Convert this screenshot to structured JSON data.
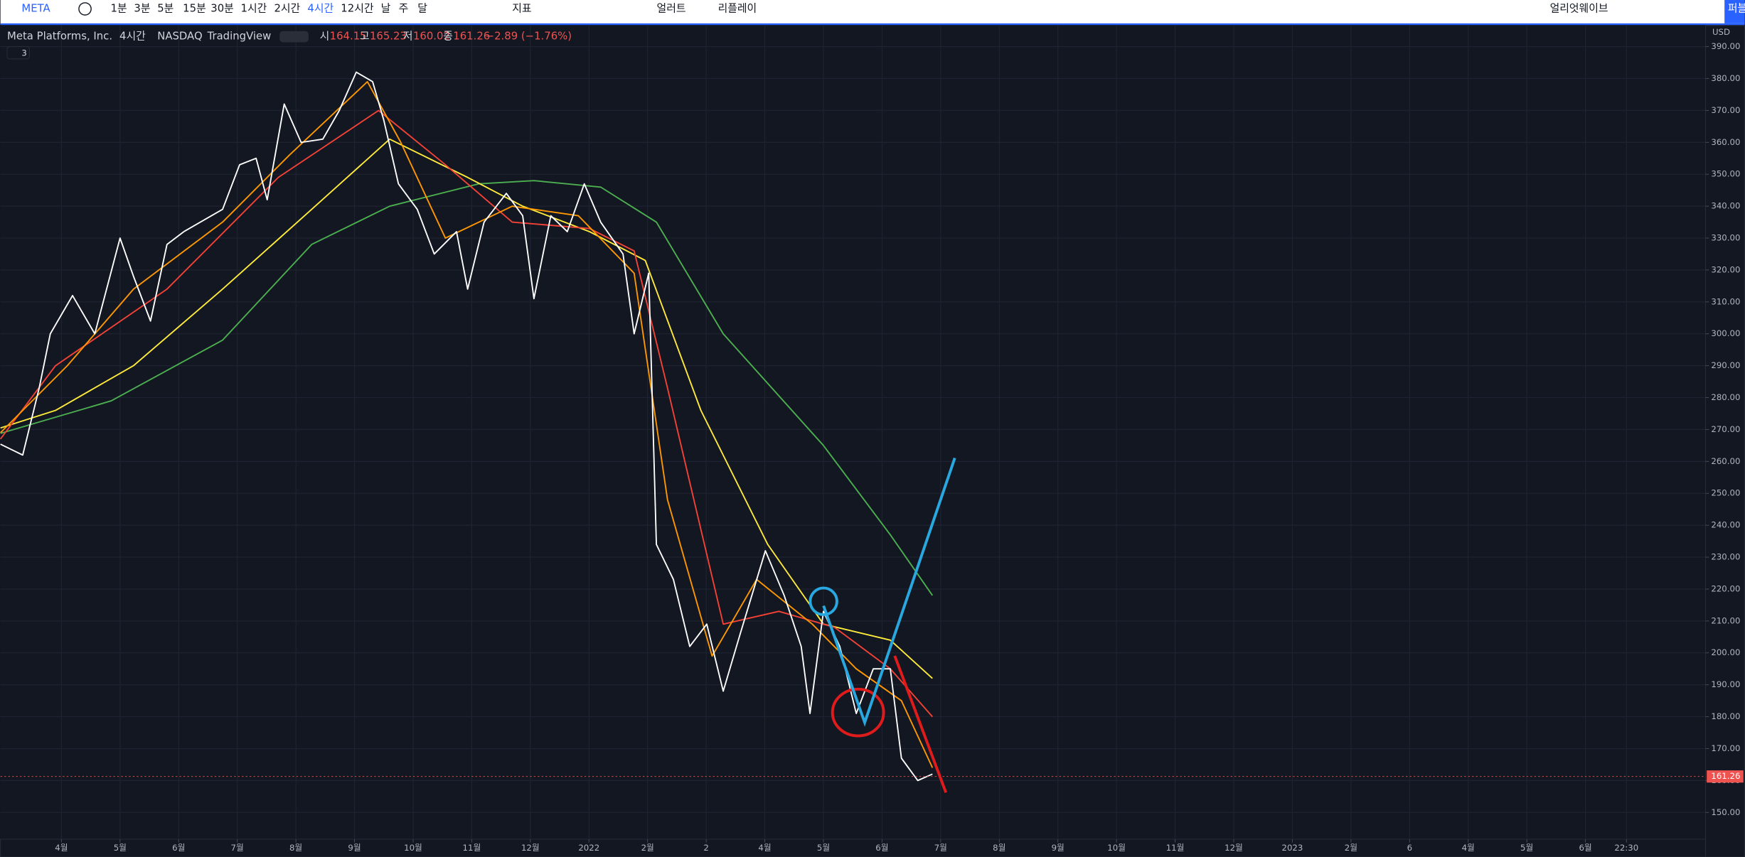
{
  "toolbar": {
    "symbol": "META",
    "intervals": [
      "1분",
      "3분",
      "5분",
      "15분",
      "30분",
      "1시간",
      "2시간",
      "4시간",
      "12시간",
      "날",
      "주",
      "달"
    ],
    "indicators": "지표",
    "alert": "얼러트",
    "replay": "리플레이",
    "layout": "얼리엇웨이브",
    "publish": "퍼블"
  },
  "legend": {
    "name": "Meta Platforms, Inc.",
    "interval": "4시간",
    "exchange": "NASDAQ",
    "source": "TradingView",
    "ohlc": [
      {
        "label": "시",
        "value": "164.15"
      },
      {
        "label": "고",
        "value": "165.23"
      },
      {
        "label": "저",
        "value": "160.02"
      },
      {
        "label": "종",
        "value": "161.26"
      }
    ],
    "change": "−2.89 (−1.76%)",
    "indicator_count": "3"
  },
  "currency": "USD",
  "chart_data": {
    "type": "line",
    "xlim": [
      1.96,
      31.05
    ],
    "ylim": [
      141.6,
      396.6
    ],
    "xticks": [
      {
        "value": 3,
        "label": "4월"
      },
      {
        "value": 4,
        "label": "5월"
      },
      {
        "value": 5,
        "label": "6월"
      },
      {
        "value": 6,
        "label": "7월"
      },
      {
        "value": 7,
        "label": "8월"
      },
      {
        "value": 8,
        "label": "9월"
      },
      {
        "value": 9,
        "label": "10월"
      },
      {
        "value": 10,
        "label": "11월"
      },
      {
        "value": 11,
        "label": "12월"
      },
      {
        "value": 12,
        "label": "2022"
      },
      {
        "value": 13,
        "label": "2월"
      },
      {
        "value": 14,
        "label": "2"
      },
      {
        "value": 15,
        "label": "4월"
      },
      {
        "value": 16,
        "label": "5월"
      },
      {
        "value": 17,
        "label": "6월"
      },
      {
        "value": 18,
        "label": "7월"
      },
      {
        "value": 19,
        "label": "8월"
      },
      {
        "value": 20,
        "label": "9월"
      },
      {
        "value": 21,
        "label": "10월"
      },
      {
        "value": 22,
        "label": "11월"
      },
      {
        "value": 23,
        "label": "12월"
      },
      {
        "value": 24,
        "label": "2023"
      },
      {
        "value": 25,
        "label": "2월"
      },
      {
        "value": 26,
        "label": "6"
      },
      {
        "value": 27,
        "label": "4월"
      },
      {
        "value": 28,
        "label": "5월"
      },
      {
        "value": 29,
        "label": "6월"
      },
      {
        "value": 29.7,
        "label": "22:30"
      }
    ],
    "yticks": [
      {
        "value": 150,
        "label": "150.00"
      },
      {
        "value": 160,
        "label": "160.00"
      },
      {
        "value": 170,
        "label": "170.00"
      },
      {
        "value": 180,
        "label": "180.00"
      },
      {
        "value": 190,
        "label": "190.00"
      },
      {
        "value": 200,
        "label": "200.00"
      },
      {
        "value": 210,
        "label": "210.00"
      },
      {
        "value": 220,
        "label": "220.00"
      },
      {
        "value": 230,
        "label": "230.00"
      },
      {
        "value": 240,
        "label": "240.00"
      },
      {
        "value": 250,
        "label": "250.00"
      },
      {
        "value": 260,
        "label": "260.00"
      },
      {
        "value": 270,
        "label": "270.00"
      },
      {
        "value": 280,
        "label": "280.00"
      },
      {
        "value": 290,
        "label": "290.00"
      },
      {
        "value": 300,
        "label": "300.00"
      },
      {
        "value": 310,
        "label": "310.00"
      },
      {
        "value": 320,
        "label": "320.00"
      },
      {
        "value": 330,
        "label": "330.00"
      },
      {
        "value": 340,
        "label": "340.00"
      },
      {
        "value": 350,
        "label": "350.00"
      },
      {
        "value": 360,
        "label": "360.00"
      },
      {
        "value": 370,
        "label": "370.00"
      },
      {
        "value": 380,
        "label": "380.00"
      },
      {
        "value": 390,
        "label": "390.00"
      }
    ],
    "grid": true,
    "series": [
      {
        "color": "#4caf50",
        "x": [
          1.96,
          3.85,
          5.75,
          7.27,
          8.6,
          10.12,
          11.06,
          12.2,
          13.15,
          14.29,
          16.0,
          17.14,
          17.86
        ],
        "values": [
          268.8,
          279,
          298,
          328,
          340,
          347,
          348,
          346,
          335,
          300,
          265,
          237,
          218
        ]
      },
      {
        "color": "#ffeb3b",
        "x": [
          1.96,
          2.9,
          4.23,
          5.75,
          7.27,
          8.6,
          9.93,
          10.87,
          12.01,
          12.96,
          13.91,
          15.05,
          16.0,
          17.14,
          17.86
        ],
        "values": [
          270.5,
          276,
          290,
          314,
          339,
          361,
          349,
          340,
          332,
          323,
          276,
          234,
          209,
          204,
          192
        ]
      },
      {
        "color": "#f44336",
        "x": [
          1.96,
          2.9,
          4.8,
          6.7,
          8.41,
          9.55,
          10.69,
          12.01,
          12.77,
          13.34,
          14.29,
          15.24,
          16.19,
          17.14,
          17.86
        ],
        "values": [
          267,
          290,
          314,
          349,
          370,
          353,
          335,
          333,
          326,
          283,
          209,
          213,
          208,
          195,
          180
        ]
      },
      {
        "color": "#ff9800",
        "x": [
          1.96,
          3.1,
          4.23,
          5.75,
          6.89,
          8.22,
          8.79,
          9.55,
          10.69,
          11.82,
          12.77,
          13.34,
          14.1,
          14.86,
          15.81,
          16.56,
          17.33,
          17.86
        ],
        "values": [
          269,
          290,
          314,
          335,
          356,
          379,
          360,
          330,
          340,
          337,
          319,
          248,
          199,
          223,
          209,
          195,
          185,
          164
        ]
      },
      {
        "color": "#ffffff",
        "x": [
          1.96,
          2.34,
          2.62,
          2.81,
          3.19,
          3.57,
          4.0,
          4.23,
          4.52,
          4.8,
          5.09,
          5.37,
          5.75,
          6.04,
          6.32,
          6.51,
          6.8,
          7.09,
          7.46,
          7.74,
          8.03,
          8.31,
          8.5,
          8.75,
          9.07,
          9.36,
          9.74,
          9.93,
          10.21,
          10.59,
          10.87,
          11.06,
          11.35,
          11.63,
          11.92,
          12.2,
          12.58,
          12.77,
          13.02,
          13.15,
          13.44,
          13.72,
          14.01,
          14.29,
          14.58,
          15.01,
          15.33,
          15.62,
          15.77,
          16.0,
          16.28,
          16.56,
          16.85,
          17.14,
          17.33,
          17.61,
          17.86
        ],
        "values": [
          265.4,
          262,
          283,
          300,
          312,
          300,
          330,
          318,
          304,
          328,
          332,
          335,
          339,
          353,
          355,
          342,
          372,
          360,
          361,
          370,
          382,
          379,
          367,
          347,
          339,
          325,
          332,
          314,
          335,
          344,
          337,
          311,
          337,
          332,
          347,
          335,
          325,
          300,
          319,
          234,
          223,
          202,
          209,
          188,
          206,
          232,
          218,
          202,
          181,
          213,
          202,
          181,
          195,
          195,
          167,
          160,
          162
        ]
      }
    ],
    "last_price": 161.26
  }
}
